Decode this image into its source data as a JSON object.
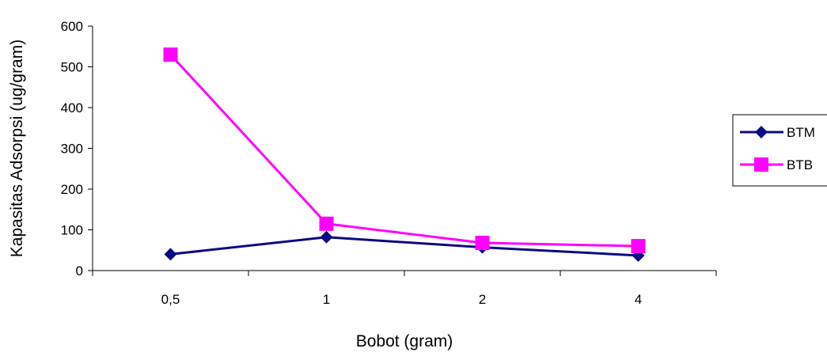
{
  "chart_data": {
    "type": "line",
    "title": "",
    "xlabel": "Bobot (gram)",
    "ylabel": "Kapasitas Adsorpsi (ug/gram)",
    "categories": [
      "0,5",
      "1",
      "2",
      "4"
    ],
    "ylim": [
      0,
      600
    ],
    "yticks": [
      0,
      100,
      200,
      300,
      400,
      500,
      600
    ],
    "ytick_labels": [
      "0",
      "100",
      "200",
      "300",
      "400",
      "500",
      "600"
    ],
    "grid": false,
    "legend_position": "right",
    "series": [
      {
        "name": "BTM",
        "values": [
          40,
          82,
          57,
          37
        ],
        "color": "#0a0a84",
        "marker": "diamond"
      },
      {
        "name": "BTB",
        "values": [
          530,
          115,
          68,
          60
        ],
        "color": "#ff00ff",
        "marker": "square"
      }
    ]
  }
}
